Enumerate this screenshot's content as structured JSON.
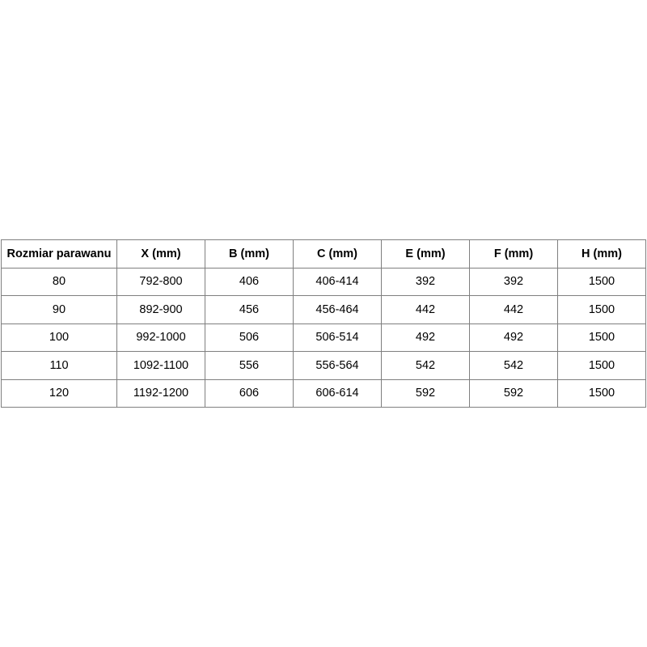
{
  "table": {
    "headers": [
      "Rozmiar parawanu",
      "X (mm)",
      "B (mm)",
      "C (mm)",
      "E (mm)",
      "F (mm)",
      "H (mm)"
    ],
    "rows": [
      [
        "80",
        "792-800",
        "406",
        "406-414",
        "392",
        "392",
        "1500"
      ],
      [
        "90",
        "892-900",
        "456",
        "456-464",
        "442",
        "442",
        "1500"
      ],
      [
        "100",
        "992-1000",
        "506",
        "506-514",
        "492",
        "492",
        "1500"
      ],
      [
        "110",
        "1092-1100",
        "556",
        "556-564",
        "542",
        "542",
        "1500"
      ],
      [
        "120",
        "1192-1200",
        "606",
        "606-614",
        "592",
        "592",
        "1500"
      ]
    ]
  }
}
